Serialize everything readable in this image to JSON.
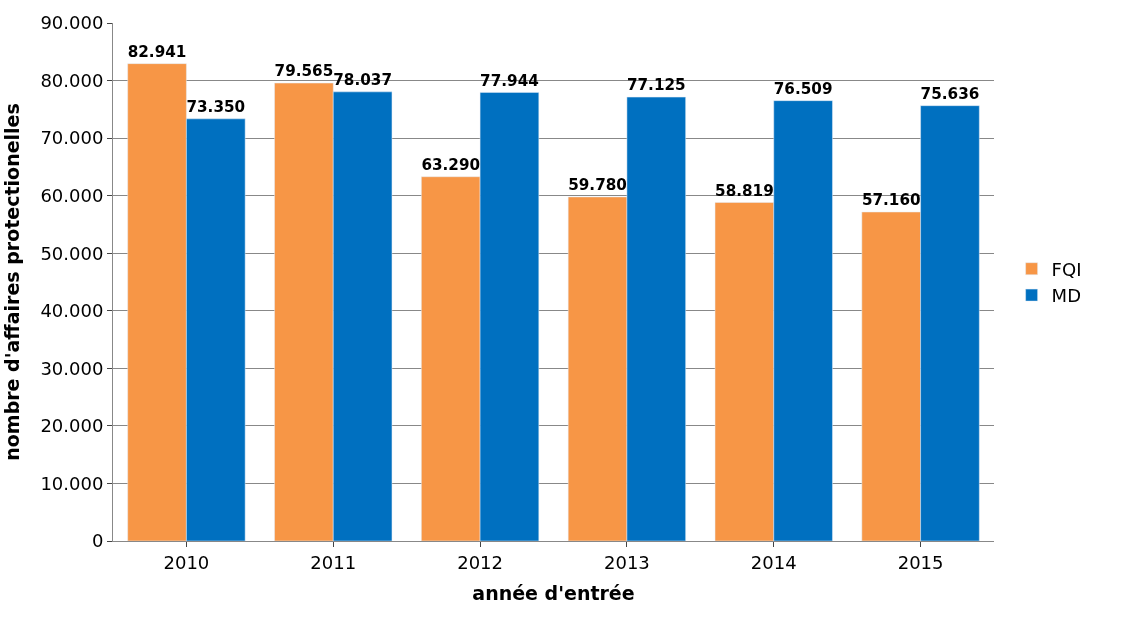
{
  "chart_data": {
    "type": "bar",
    "xlabel": "année d'entrée",
    "ylabel": "nombre d'affaires protectionelles",
    "categories": [
      "2010",
      "2011",
      "2012",
      "2013",
      "2014",
      "2015"
    ],
    "series": [
      {
        "name": "FQI",
        "color": "#f79646",
        "values": [
          82941,
          79565,
          63290,
          59780,
          58819,
          57160
        ],
        "value_labels": [
          "82.941",
          "79.565",
          "63.290",
          "59.780",
          "58.819",
          "57.160"
        ]
      },
      {
        "name": "MD",
        "color": "#0070c0",
        "values": [
          73350,
          78037,
          77944,
          77125,
          76509,
          75636
        ],
        "value_labels": [
          "73.350",
          "78.037",
          "77.944",
          "77.125",
          "76.509",
          "75.636"
        ]
      }
    ],
    "ylim": [
      0,
      90000
    ],
    "yticks": [
      0,
      {
        "value": 10000,
        "label": "10.000"
      },
      {
        "value": 20000,
        "label": "20.000"
      },
      {
        "value": 30000,
        "label": "30.000"
      },
      {
        "value": 40000,
        "label": "40.000"
      },
      {
        "value": 50000,
        "label": "50.000"
      },
      {
        "value": 60000,
        "label": "60.000"
      },
      {
        "value": 70000,
        "label": "70.000"
      },
      {
        "value": 80000,
        "label": "80.000"
      },
      {
        "value": 90000,
        "label": "90.000"
      }
    ],
    "grid": "y",
    "legend": "right"
  }
}
